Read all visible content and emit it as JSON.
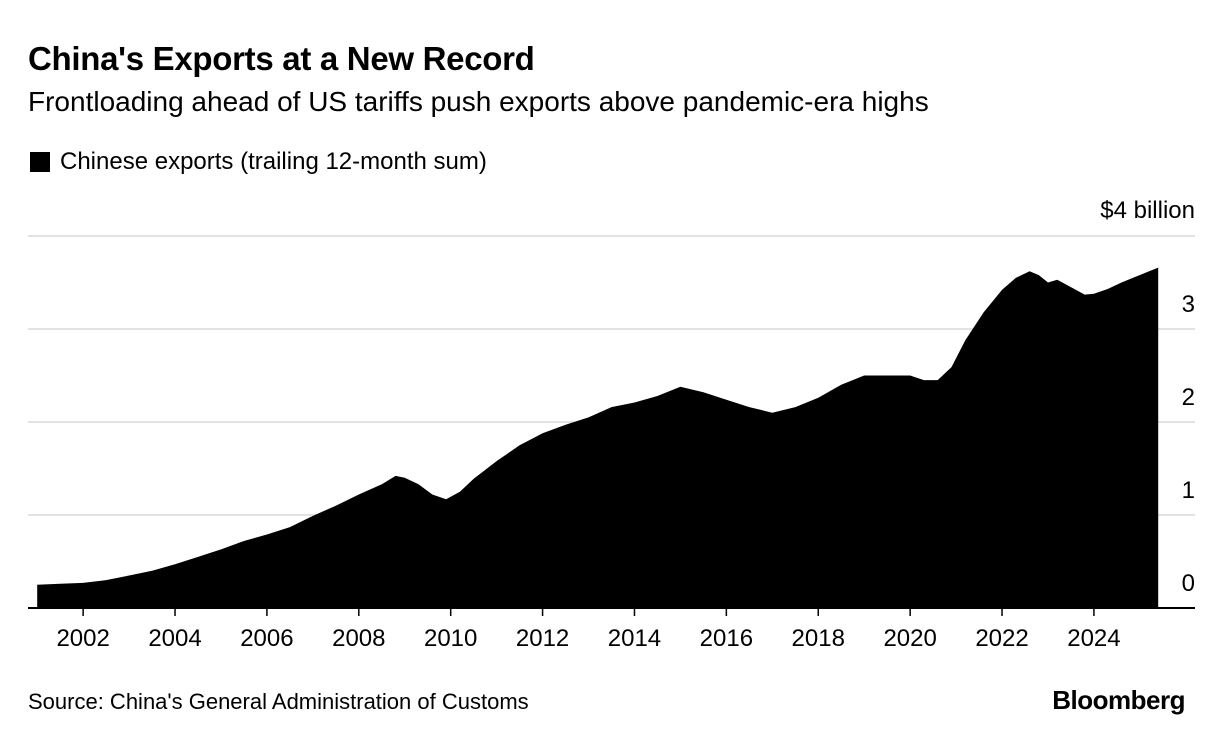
{
  "header": {
    "title": "China's Exports at a New Record",
    "subtitle": "Frontloading ahead of US tariffs push exports above pandemic-era highs"
  },
  "legend": {
    "label": "Chinese exports (trailing 12-month sum)"
  },
  "footer": {
    "source": "Source: China's General Administration of Customs",
    "brand": "Bloomberg"
  },
  "colors": {
    "fill": "#000000",
    "grid": "#d9d9d9",
    "axis": "#000000"
  },
  "chart_data": {
    "type": "area",
    "title": "China's Exports at a New Record",
    "subtitle": "Frontloading ahead of US tariffs push exports above pandemic-era highs",
    "legend_position": "top-left",
    "grid": true,
    "ylim": [
      0,
      4
    ],
    "yticks": [
      0,
      1,
      2,
      3,
      4
    ],
    "ytick_labels": [
      "0",
      "1",
      "2",
      "3",
      "$4 billion"
    ],
    "xlim": [
      2000.8,
      2026.2
    ],
    "xticks": [
      2002,
      2004,
      2006,
      2008,
      2010,
      2012,
      2014,
      2016,
      2018,
      2020,
      2022,
      2024
    ],
    "xtick_labels": [
      "2002",
      "2004",
      "2006",
      "2008",
      "2010",
      "2012",
      "2014",
      "2016",
      "2018",
      "2020",
      "2022",
      "2024"
    ],
    "series": [
      {
        "name": "Chinese exports (trailing 12-month sum)",
        "x": [
          2001.0,
          2001.5,
          2002.0,
          2002.5,
          2003.0,
          2003.5,
          2004.0,
          2004.5,
          2005.0,
          2005.5,
          2006.0,
          2006.5,
          2007.0,
          2007.5,
          2008.0,
          2008.5,
          2008.8,
          2009.0,
          2009.3,
          2009.6,
          2009.9,
          2010.2,
          2010.5,
          2011.0,
          2011.5,
          2012.0,
          2012.5,
          2013.0,
          2013.5,
          2014.0,
          2014.5,
          2015.0,
          2015.5,
          2016.0,
          2016.5,
          2017.0,
          2017.5,
          2018.0,
          2018.5,
          2019.0,
          2019.5,
          2020.0,
          2020.3,
          2020.6,
          2020.9,
          2021.2,
          2021.6,
          2022.0,
          2022.3,
          2022.6,
          2022.8,
          2023.0,
          2023.2,
          2023.5,
          2023.8,
          2024.0,
          2024.3,
          2024.6,
          2024.9,
          2025.2,
          2025.4
        ],
        "values": [
          0.25,
          0.26,
          0.27,
          0.3,
          0.35,
          0.4,
          0.47,
          0.55,
          0.63,
          0.72,
          0.79,
          0.87,
          0.99,
          1.1,
          1.22,
          1.33,
          1.42,
          1.4,
          1.33,
          1.22,
          1.17,
          1.25,
          1.39,
          1.58,
          1.75,
          1.88,
          1.97,
          2.05,
          2.16,
          2.21,
          2.28,
          2.38,
          2.32,
          2.24,
          2.16,
          2.1,
          2.16,
          2.26,
          2.4,
          2.5,
          2.5,
          2.5,
          2.45,
          2.45,
          2.59,
          2.88,
          3.18,
          3.42,
          3.55,
          3.62,
          3.58,
          3.5,
          3.53,
          3.45,
          3.37,
          3.38,
          3.43,
          3.5,
          3.56,
          3.62,
          3.66
        ]
      }
    ]
  }
}
